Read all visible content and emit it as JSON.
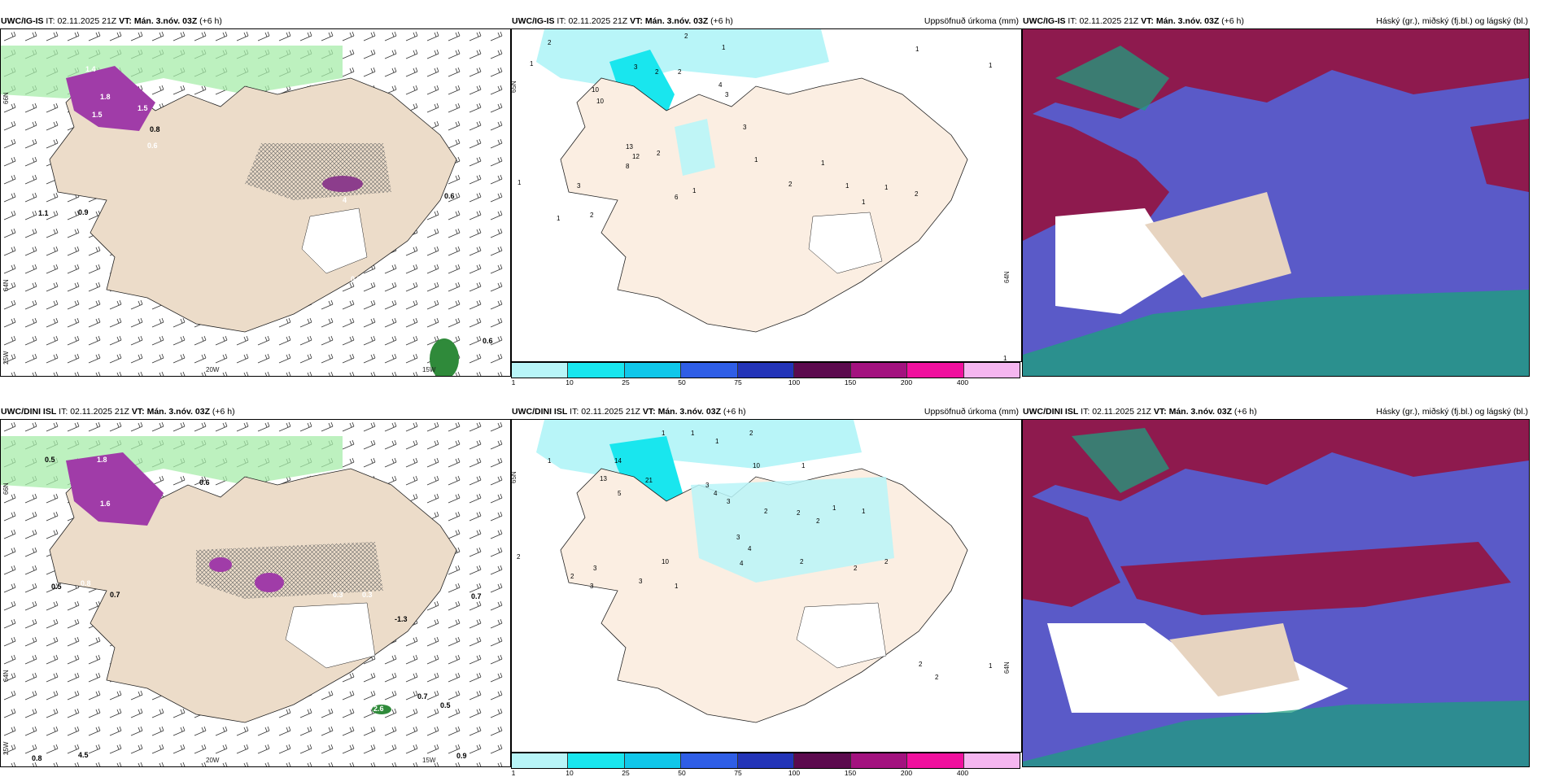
{
  "panels": {
    "top_left": {
      "model": "UWC/IG-IS",
      "it_label": "IT:",
      "it_value": "02.11.2025 21Z",
      "vt_label": "VT:",
      "vt_value": "Mán. 3.nóv. 03Z",
      "lead": "(+6 h)",
      "right_title": ""
    },
    "top_mid": {
      "model": "UWC/IG-IS",
      "it_label": "IT:",
      "it_value": "02.11.2025 21Z",
      "vt_label": "VT:",
      "vt_value": "Mán. 3.nóv. 03Z",
      "lead": "(+6 h)",
      "right_title": "Uppsöfnuð úrkoma (mm)"
    },
    "top_right": {
      "model": "UWC/IG-IS",
      "it_label": "IT:",
      "it_value": "02.11.2025 21Z",
      "vt_label": "VT:",
      "vt_value": "Mán. 3.nóv. 03Z",
      "lead": "(+6 h)",
      "right_title": "Háský (gr.), miðský (fj.bl.) og lágský (bl.)"
    },
    "bot_left": {
      "model": "UWC/DINI ISL",
      "it_label": "IT:",
      "it_value": "02.11.2025 21Z",
      "vt_label": "VT:",
      "vt_value": "Mán. 3.nóv. 03Z",
      "lead": "(+6 h)",
      "right_title": ""
    },
    "bot_mid": {
      "model": "UWC/DINI ISL",
      "it_label": "IT:",
      "it_value": "02.11.2025 21Z",
      "vt_label": "VT:",
      "vt_value": "Mán. 3.nóv. 03Z",
      "lead": "(+6 h)",
      "right_title": "Uppsöfnuð úrkoma (mm)"
    },
    "bot_right": {
      "model": "UWC/DINI ISL",
      "it_label": "IT:",
      "it_value": "02.11.2025 21Z",
      "vt_label": "VT:",
      "vt_value": "Mán. 3.nóv. 03Z",
      "lead": "(+6 h)",
      "right_title": "Hásky (gr.), miðský (fj.bl.) og lágský (bl.)"
    }
  },
  "axes": {
    "lat_66": "66N",
    "lat_64": "64N",
    "lon_25": "25W",
    "lon_20": "20W",
    "lon_15": "15W",
    "mid_65": "65N",
    "mid_64": "64N"
  },
  "colorbar": {
    "ticks": [
      "1",
      "10",
      "25",
      "50",
      "75",
      "100",
      "150",
      "200",
      "400"
    ],
    "colors": [
      "#b8f5f8",
      "#19e6ee",
      "#10c7ea",
      "#2f5ee6",
      "#2334b8",
      "#5c0a4e",
      "#a3127f",
      "#f0109e",
      "#f5b6f0"
    ]
  },
  "labels": {
    "tl": [
      "0.2",
      "1.4",
      "1.8",
      "1.5",
      "0.8",
      "1.5",
      "4",
      "0.6",
      "1.1",
      "0.9",
      "0.6",
      "0.9",
      "0.6"
    ],
    "tm": [
      "2",
      "1",
      "2",
      "1",
      "1",
      "3",
      "10",
      "10",
      "2",
      "2",
      "4",
      "3",
      "3",
      "13",
      "12",
      "8",
      "1",
      "2",
      "1",
      "6",
      "1",
      "3",
      "2",
      "1",
      "2",
      "1",
      "2",
      "1",
      "1",
      "1",
      "1",
      "1"
    ],
    "bl": [
      "0.5",
      "1.8",
      "1.6",
      "0.6",
      "0.5",
      "0.8",
      "0.7",
      "0.3",
      "0.3",
      "-1.3",
      "0.7",
      "0.7",
      "0.5",
      "2.6",
      "0.9",
      "0.8",
      "4.5"
    ],
    "bm": [
      "1",
      "1",
      "1",
      "2",
      "1",
      "14",
      "13",
      "21",
      "5",
      "10",
      "1",
      "3",
      "4",
      "3",
      "2",
      "2",
      "2",
      "3",
      "4",
      "1",
      "1",
      "2",
      "10",
      "3",
      "4",
      "3",
      "2",
      "2",
      "1",
      "2",
      "1",
      "3",
      "2",
      "2",
      "2"
    ]
  },
  "colors": {
    "land": "#ecdcc9",
    "wind": "#222222",
    "green": "#9ee89a",
    "magenta": "#a03ca8",
    "cloud_high": "#8e1a4e",
    "cloud_mid": "#5a5ac8",
    "cloud_low": "#1f9e7f"
  }
}
